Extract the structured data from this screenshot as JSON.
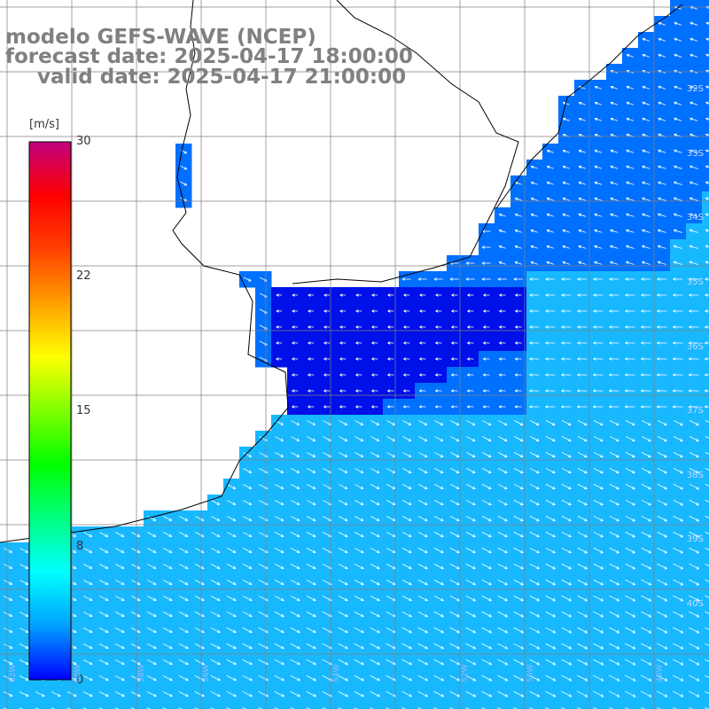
{
  "header": {
    "model_line": "modelo GEFS-WAVE (NCEP)",
    "forecast_line": "forecast date: 2025-04-17 18:00:00",
    "valid_line": "valid date: 2025-04-17 21:00:00"
  },
  "colorbar": {
    "unit": "[m/s]",
    "ticks": [
      "30",
      "22",
      "15",
      "8",
      "0"
    ],
    "stops": [
      "#0000ff",
      "#00a0ff",
      "#00ffff",
      "#00ff80",
      "#00ff00",
      "#80ff00",
      "#ffff00",
      "#ffa000",
      "#ff4000",
      "#ff0000",
      "#c00080"
    ]
  },
  "lat_labels": [
    "32S",
    "33S",
    "34S",
    "35S",
    "36S",
    "37S",
    "38S",
    "39S",
    "40S"
  ],
  "lon_labels": [
    "62W",
    "60W",
    "58W",
    "56W",
    "54W",
    "52W",
    "50W",
    "48W"
  ],
  "field_colors": {
    "land": "#ffffff",
    "low": "#0010e8",
    "mid": "#0070ff",
    "high": "#18b8ff",
    "grid": "#808080",
    "coast": "#000000"
  }
}
